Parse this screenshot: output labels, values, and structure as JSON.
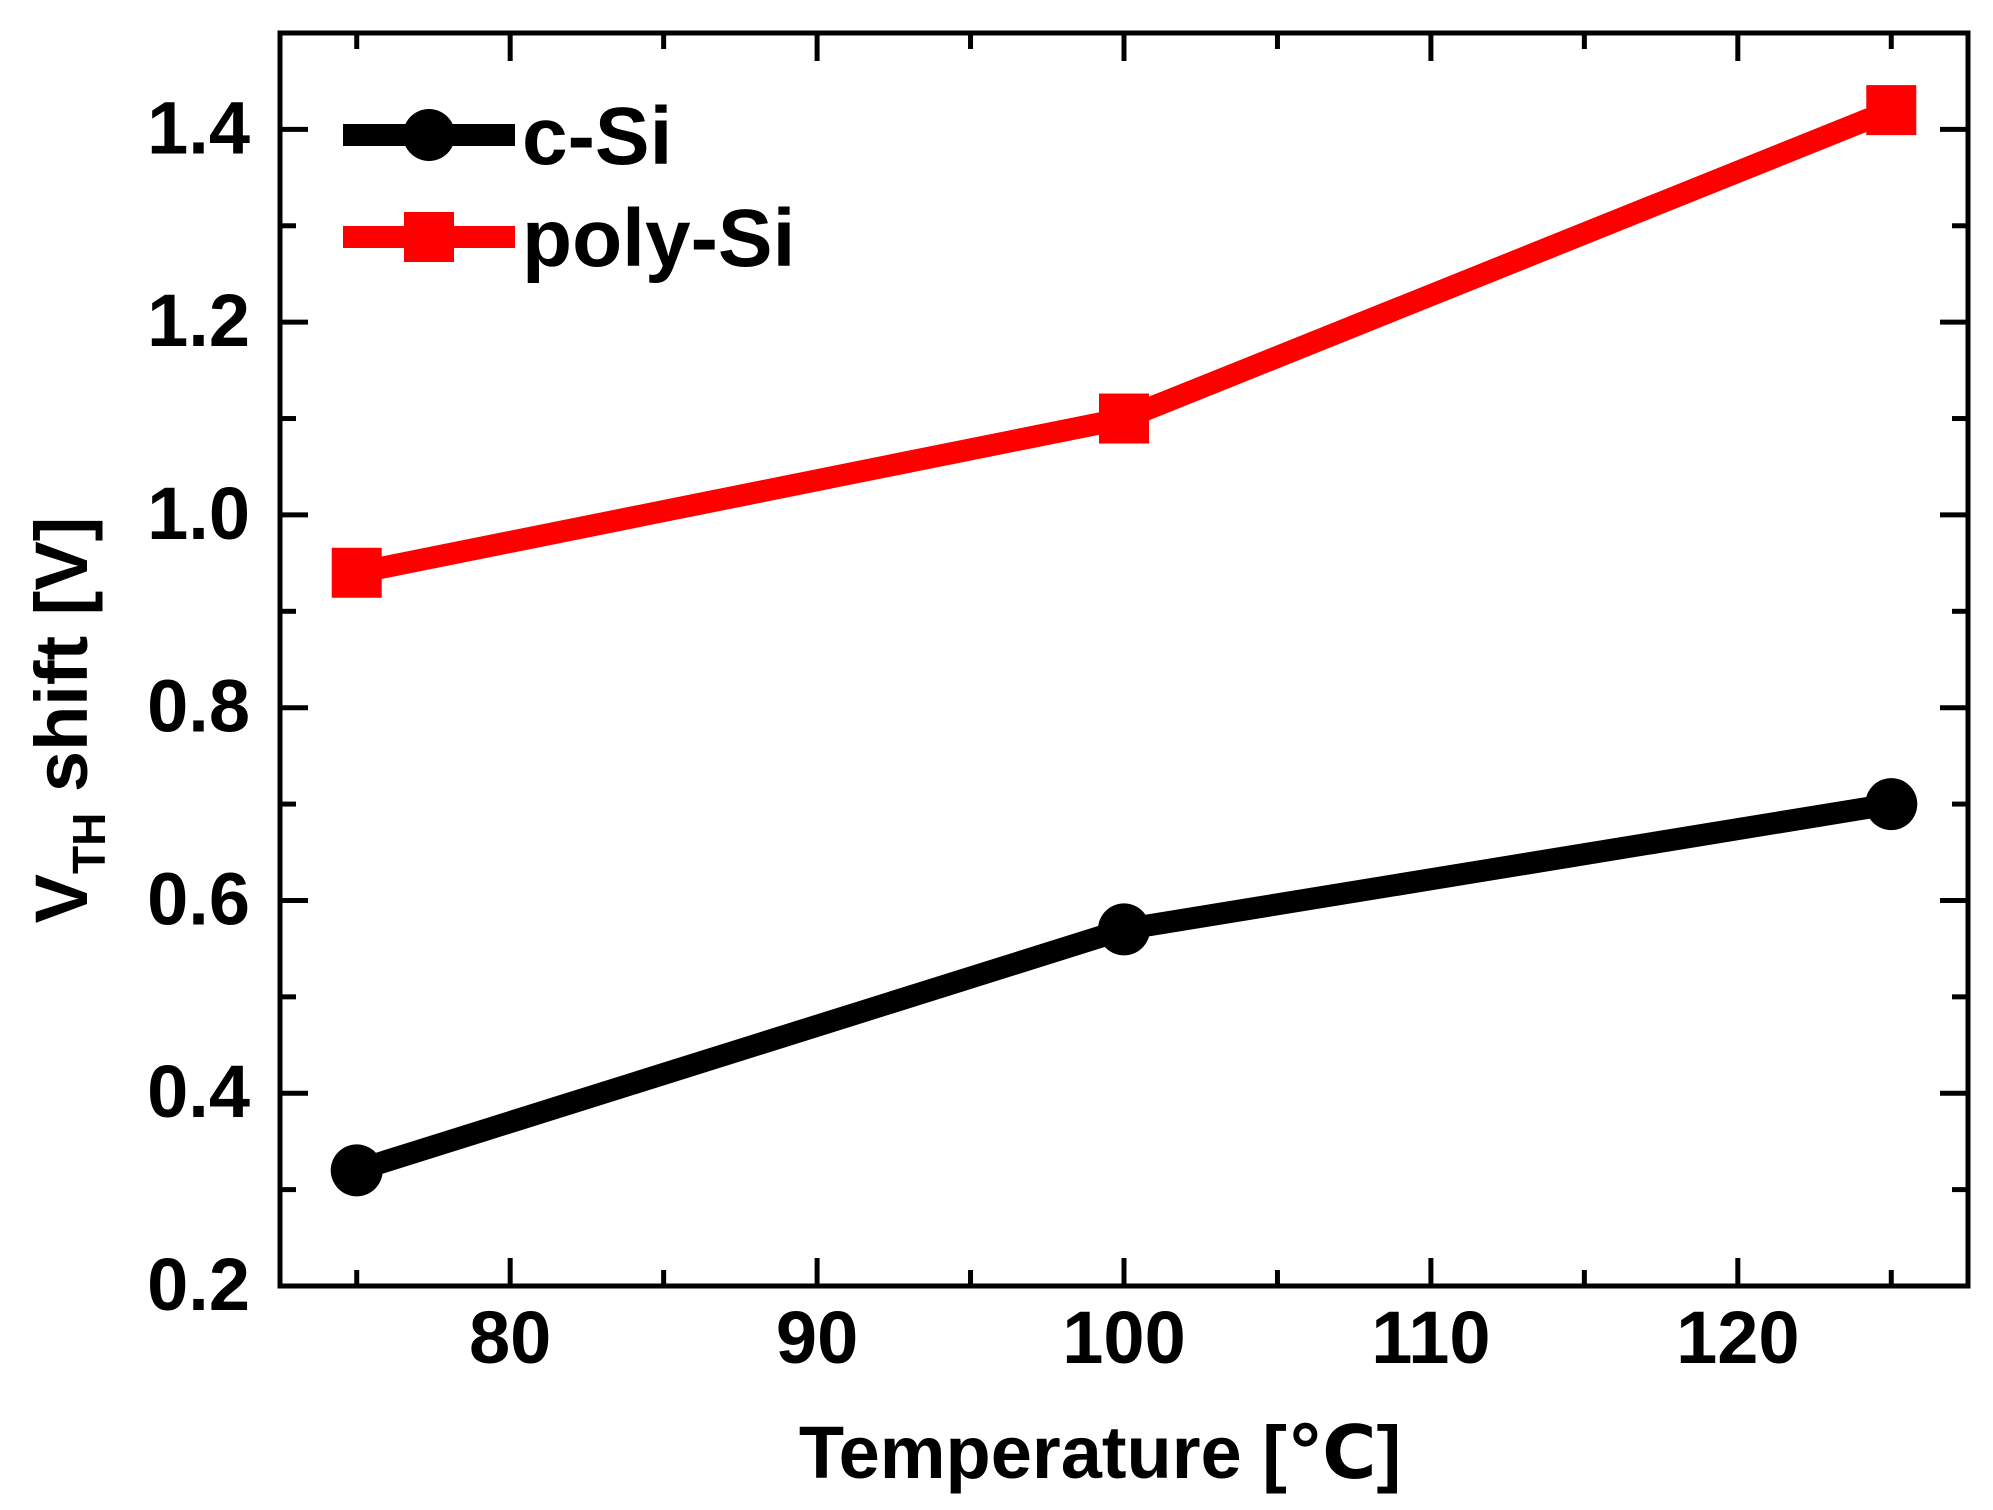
{
  "figure": {
    "background": "#ffffff"
  },
  "chart_data": {
    "type": "line",
    "title": "",
    "xlabel": "Temperature [℃]",
    "ylabel": {
      "main": "V",
      "sub": "TH",
      "rest": " shift [V]"
    },
    "xlim": [
      72.5,
      127.5
    ],
    "ylim": [
      0.2,
      1.5
    ],
    "grid": false,
    "legend_position": "top-left",
    "x_major_ticks": [
      {
        "value": 80,
        "label": "80"
      },
      {
        "value": 90,
        "label": "90"
      },
      {
        "value": 100,
        "label": "100"
      },
      {
        "value": 110,
        "label": "110"
      },
      {
        "value": 120,
        "label": "120"
      }
    ],
    "x_minor_ticks": [
      75,
      85,
      95,
      105,
      115,
      125
    ],
    "y_major_ticks": [
      {
        "value": 0.2,
        "label": "0.2"
      },
      {
        "value": 0.4,
        "label": "0.4"
      },
      {
        "value": 0.6,
        "label": "0.6"
      },
      {
        "value": 0.8,
        "label": "0.8"
      },
      {
        "value": 1.0,
        "label": "1.0"
      },
      {
        "value": 1.2,
        "label": "1.2"
      },
      {
        "value": 1.4,
        "label": "1.4"
      }
    ],
    "y_minor_ticks": [
      0.3,
      0.5,
      0.7,
      0.9,
      1.1,
      1.3
    ],
    "x": [
      75,
      100,
      125
    ],
    "series": [
      {
        "name": "c-Si",
        "color": "#000000",
        "marker": "circle",
        "values": [
          0.32,
          0.57,
          0.7
        ]
      },
      {
        "name": "poly-Si",
        "color": "#ff0000",
        "marker": "square",
        "values": [
          0.94,
          1.1,
          1.42
        ]
      }
    ]
  }
}
